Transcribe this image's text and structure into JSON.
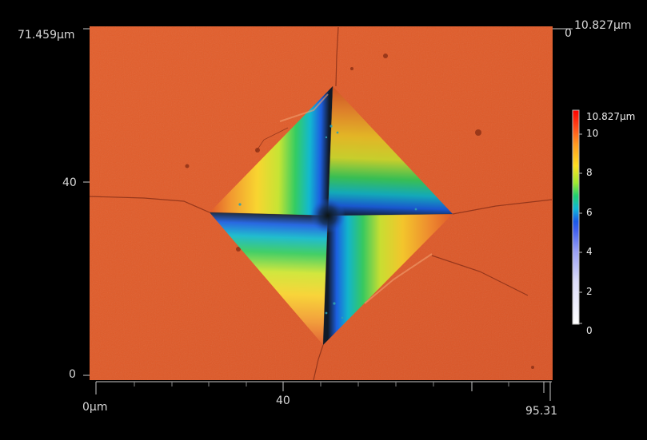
{
  "image": {
    "description": "AFM / confocal height map of a Vickers hardness indentation",
    "colors": {
      "surface": "#e05a2a",
      "pit_center": "#101a1a",
      "background": "#000000"
    }
  },
  "axes": {
    "y_top_label": "71.459µm",
    "y_mid_label": "40",
    "y_zero_label": "0",
    "x_zero_label": "0µm",
    "x_mid_label": "40",
    "x_max_label": "95.31",
    "z_axis_top_label": "10.827µm",
    "z_axis_zero_label": "0"
  },
  "color_scale": {
    "max_label": "10.827µm",
    "tick_labels": [
      "10",
      "8",
      "6",
      "4",
      "2",
      "0"
    ]
  }
}
